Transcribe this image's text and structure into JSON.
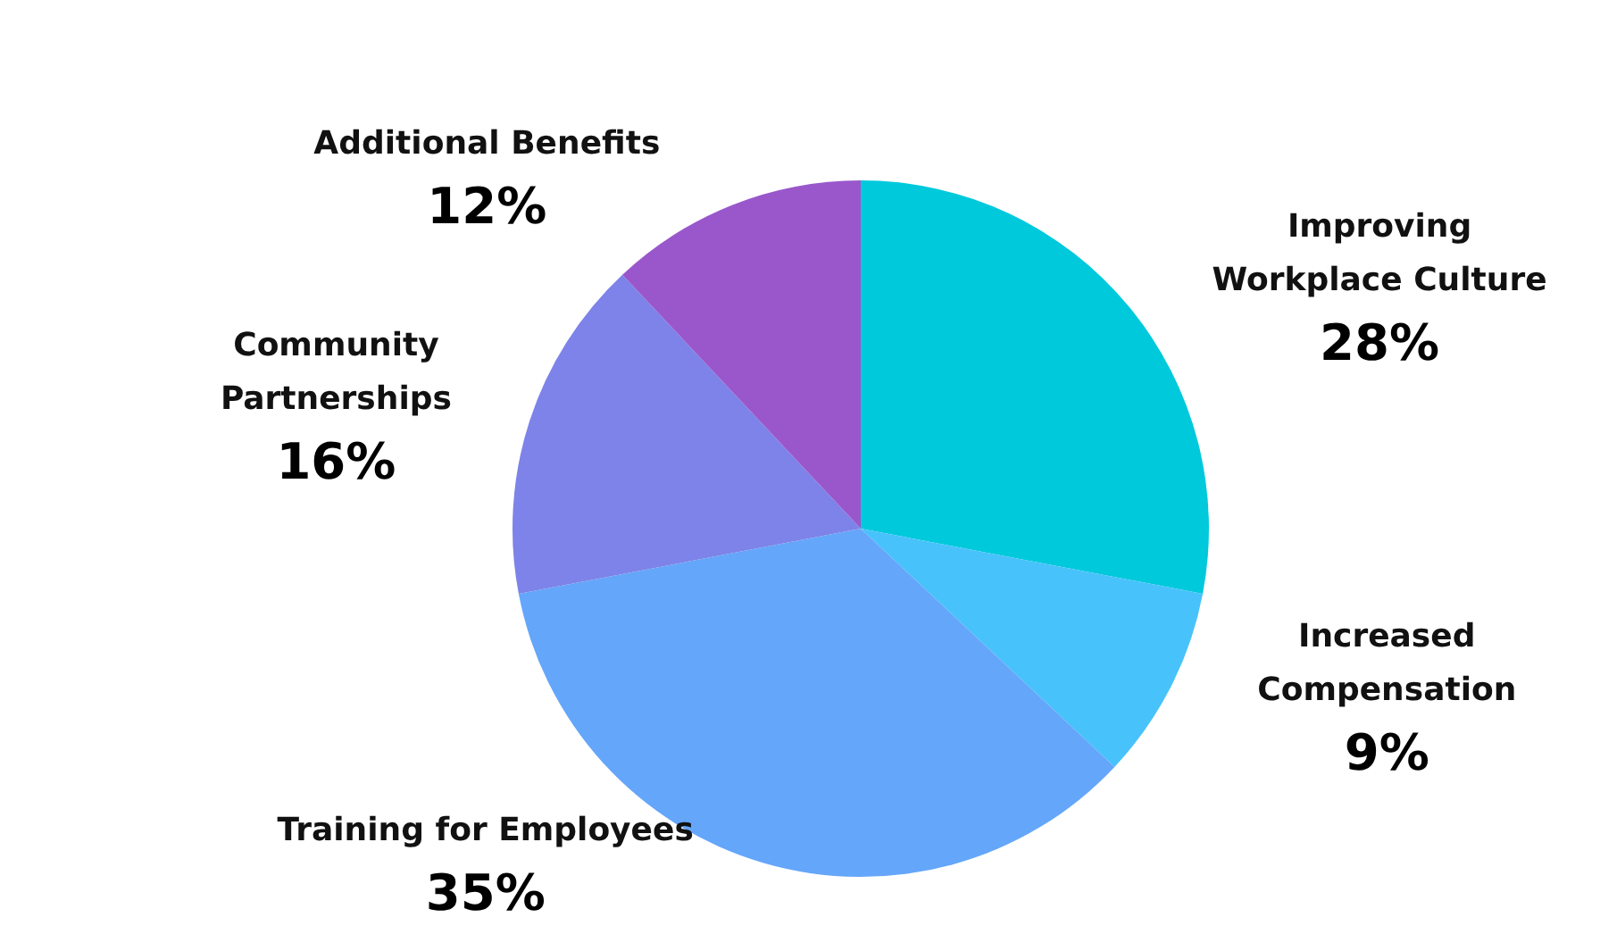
{
  "chart_data": {
    "type": "pie",
    "categories": [
      "Improving Workplace Culture",
      "Increased Compensation",
      "Training for Employees",
      "Community Partnerships",
      "Additional Benefits"
    ],
    "values": [
      28,
      9,
      35,
      16,
      12
    ],
    "colors": [
      "#00c9dc",
      "#48c2fb",
      "#64a6fa",
      "#7d83e8",
      "#9a57cb"
    ],
    "value_labels": [
      "28%",
      "9%",
      "35%",
      "16%",
      "12%"
    ],
    "legend": false
  }
}
